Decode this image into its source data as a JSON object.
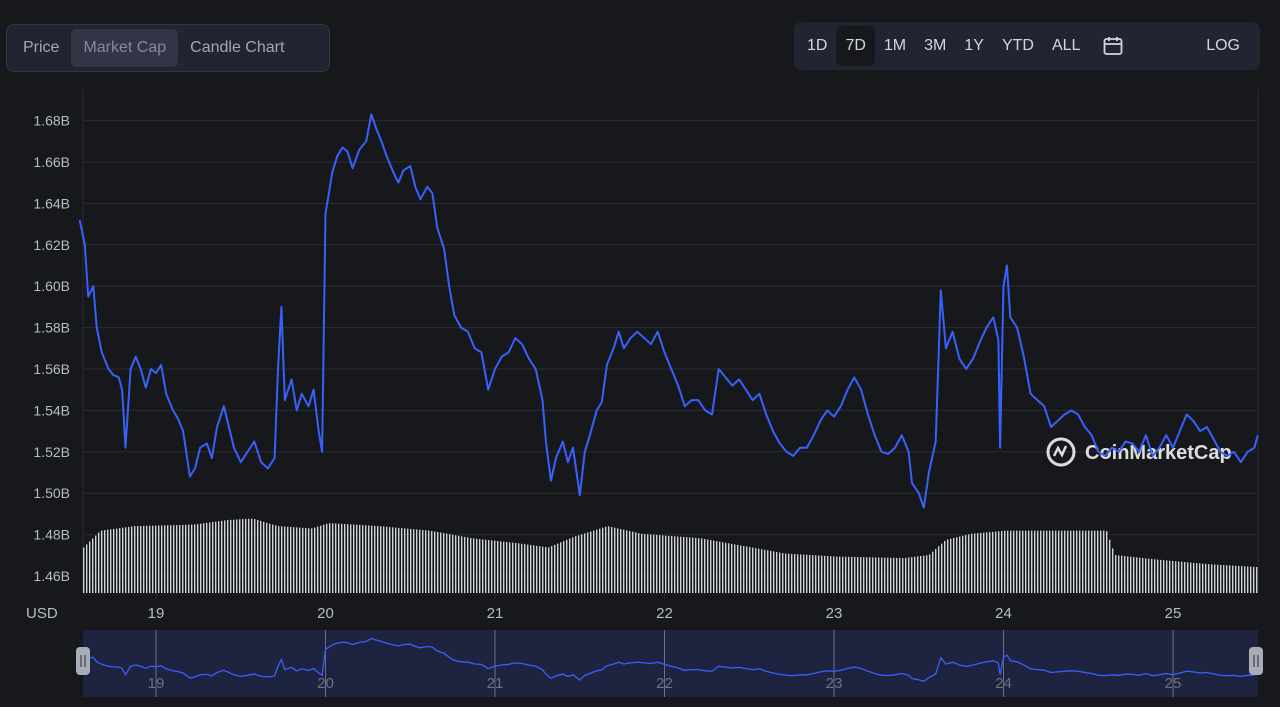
{
  "tabs": [
    {
      "label": "Price",
      "active": false
    },
    {
      "label": "Market Cap",
      "active": true
    },
    {
      "label": "Candle Chart",
      "active": false
    }
  ],
  "ranges": [
    {
      "label": "1D",
      "active": false
    },
    {
      "label": "7D",
      "active": true
    },
    {
      "label": "1M",
      "active": false
    },
    {
      "label": "3M",
      "active": false
    },
    {
      "label": "1Y",
      "active": false
    },
    {
      "label": "YTD",
      "active": false
    },
    {
      "label": "ALL",
      "active": false
    }
  ],
  "calendar_icon": "calendar-icon",
  "log_label": "LOG",
  "watermark": "CoinMarketCap",
  "colors": {
    "line": "#3861fb",
    "background": "#17181b",
    "grid": "#2a2c33",
    "volume": "#cfd2d8",
    "axis_text": "#b7bdc6",
    "navigator_bg": "#1e2340"
  },
  "chart_data": {
    "type": "line",
    "currency_label": "USD",
    "y_ticks": [
      "1.46B",
      "1.48B",
      "1.50B",
      "1.52B",
      "1.54B",
      "1.56B",
      "1.58B",
      "1.60B",
      "1.62B",
      "1.64B",
      "1.66B",
      "1.68B"
    ],
    "ylim": [
      1.45,
      1.69
    ],
    "x_ticks": [
      "19",
      "20",
      "21",
      "22",
      "23",
      "24",
      "25"
    ],
    "xlim": [
      18.55,
      25.5
    ],
    "grid": true,
    "series": [
      {
        "values": [
          [
            18.55,
            1.632
          ],
          [
            18.58,
            1.62
          ],
          [
            18.6,
            1.595
          ],
          [
            18.63,
            1.6
          ],
          [
            18.65,
            1.58
          ],
          [
            18.68,
            1.568
          ],
          [
            18.72,
            1.56
          ],
          [
            18.75,
            1.557
          ],
          [
            18.78,
            1.556
          ],
          [
            18.8,
            1.55
          ],
          [
            18.82,
            1.522
          ],
          [
            18.85,
            1.56
          ],
          [
            18.88,
            1.566
          ],
          [
            18.91,
            1.56
          ],
          [
            18.94,
            1.551
          ],
          [
            18.97,
            1.56
          ],
          [
            19.0,
            1.558
          ],
          [
            19.03,
            1.562
          ],
          [
            19.06,
            1.548
          ],
          [
            19.1,
            1.54
          ],
          [
            19.13,
            1.536
          ],
          [
            19.16,
            1.53
          ],
          [
            19.2,
            1.508
          ],
          [
            19.23,
            1.512
          ],
          [
            19.26,
            1.522
          ],
          [
            19.3,
            1.524
          ],
          [
            19.33,
            1.517
          ],
          [
            19.36,
            1.532
          ],
          [
            19.4,
            1.542
          ],
          [
            19.43,
            1.532
          ],
          [
            19.46,
            1.522
          ],
          [
            19.5,
            1.515
          ],
          [
            19.54,
            1.52
          ],
          [
            19.58,
            1.525
          ],
          [
            19.62,
            1.515
          ],
          [
            19.66,
            1.512
          ],
          [
            19.7,
            1.517
          ],
          [
            19.72,
            1.56
          ],
          [
            19.74,
            1.59
          ],
          [
            19.76,
            1.545
          ],
          [
            19.8,
            1.555
          ],
          [
            19.83,
            1.54
          ],
          [
            19.86,
            1.548
          ],
          [
            19.9,
            1.542
          ],
          [
            19.93,
            1.55
          ],
          [
            19.96,
            1.53
          ],
          [
            19.98,
            1.52
          ],
          [
            20.0,
            1.635
          ],
          [
            20.02,
            1.645
          ],
          [
            20.04,
            1.655
          ],
          [
            20.07,
            1.663
          ],
          [
            20.1,
            1.667
          ],
          [
            20.13,
            1.665
          ],
          [
            20.16,
            1.657
          ],
          [
            20.2,
            1.666
          ],
          [
            20.24,
            1.67
          ],
          [
            20.27,
            1.683
          ],
          [
            20.3,
            1.676
          ],
          [
            20.33,
            1.67
          ],
          [
            20.36,
            1.663
          ],
          [
            20.4,
            1.655
          ],
          [
            20.43,
            1.65
          ],
          [
            20.46,
            1.656
          ],
          [
            20.5,
            1.658
          ],
          [
            20.53,
            1.648
          ],
          [
            20.56,
            1.642
          ],
          [
            20.6,
            1.648
          ],
          [
            20.63,
            1.645
          ],
          [
            20.66,
            1.628
          ],
          [
            20.7,
            1.618
          ],
          [
            20.73,
            1.6
          ],
          [
            20.76,
            1.586
          ],
          [
            20.8,
            1.58
          ],
          [
            20.84,
            1.578
          ],
          [
            20.88,
            1.57
          ],
          [
            20.92,
            1.568
          ],
          [
            20.96,
            1.55
          ],
          [
            21.0,
            1.56
          ],
          [
            21.04,
            1.566
          ],
          [
            21.08,
            1.568
          ],
          [
            21.12,
            1.575
          ],
          [
            21.16,
            1.572
          ],
          [
            21.2,
            1.565
          ],
          [
            21.24,
            1.56
          ],
          [
            21.28,
            1.545
          ],
          [
            21.3,
            1.525
          ],
          [
            21.33,
            1.506
          ],
          [
            21.36,
            1.517
          ],
          [
            21.4,
            1.525
          ],
          [
            21.43,
            1.515
          ],
          [
            21.46,
            1.522
          ],
          [
            21.5,
            1.499
          ],
          [
            21.53,
            1.52
          ],
          [
            21.56,
            1.528
          ],
          [
            21.6,
            1.54
          ],
          [
            21.63,
            1.544
          ],
          [
            21.66,
            1.562
          ],
          [
            21.7,
            1.57
          ],
          [
            21.73,
            1.578
          ],
          [
            21.76,
            1.57
          ],
          [
            21.8,
            1.575
          ],
          [
            21.84,
            1.578
          ],
          [
            21.88,
            1.575
          ],
          [
            21.92,
            1.572
          ],
          [
            21.96,
            1.578
          ],
          [
            22.0,
            1.568
          ],
          [
            22.04,
            1.56
          ],
          [
            22.08,
            1.552
          ],
          [
            22.12,
            1.542
          ],
          [
            22.16,
            1.545
          ],
          [
            22.2,
            1.545
          ],
          [
            22.24,
            1.54
          ],
          [
            22.28,
            1.538
          ],
          [
            22.32,
            1.56
          ],
          [
            22.36,
            1.556
          ],
          [
            22.4,
            1.552
          ],
          [
            22.44,
            1.555
          ],
          [
            22.48,
            1.55
          ],
          [
            22.52,
            1.545
          ],
          [
            22.56,
            1.548
          ],
          [
            22.6,
            1.538
          ],
          [
            22.64,
            1.53
          ],
          [
            22.68,
            1.524
          ],
          [
            22.72,
            1.52
          ],
          [
            22.76,
            1.518
          ],
          [
            22.8,
            1.522
          ],
          [
            22.84,
            1.522
          ],
          [
            22.88,
            1.528
          ],
          [
            22.92,
            1.535
          ],
          [
            22.96,
            1.54
          ],
          [
            23.0,
            1.537
          ],
          [
            23.04,
            1.542
          ],
          [
            23.08,
            1.55
          ],
          [
            23.12,
            1.556
          ],
          [
            23.16,
            1.55
          ],
          [
            23.2,
            1.538
          ],
          [
            23.24,
            1.528
          ],
          [
            23.28,
            1.52
          ],
          [
            23.32,
            1.519
          ],
          [
            23.36,
            1.522
          ],
          [
            23.4,
            1.528
          ],
          [
            23.44,
            1.52
          ],
          [
            23.46,
            1.505
          ],
          [
            23.5,
            1.5
          ],
          [
            23.53,
            1.493
          ],
          [
            23.56,
            1.51
          ],
          [
            23.6,
            1.525
          ],
          [
            23.63,
            1.598
          ],
          [
            23.66,
            1.57
          ],
          [
            23.7,
            1.578
          ],
          [
            23.74,
            1.565
          ],
          [
            23.78,
            1.56
          ],
          [
            23.82,
            1.565
          ],
          [
            23.86,
            1.573
          ],
          [
            23.9,
            1.58
          ],
          [
            23.94,
            1.585
          ],
          [
            23.97,
            1.574
          ],
          [
            23.98,
            1.522
          ],
          [
            24.0,
            1.6
          ],
          [
            24.02,
            1.61
          ],
          [
            24.04,
            1.585
          ],
          [
            24.08,
            1.58
          ],
          [
            24.12,
            1.566
          ],
          [
            24.16,
            1.548
          ],
          [
            24.2,
            1.545
          ],
          [
            24.24,
            1.542
          ],
          [
            24.28,
            1.532
          ],
          [
            24.32,
            1.535
          ],
          [
            24.36,
            1.538
          ],
          [
            24.4,
            1.54
          ],
          [
            24.44,
            1.538
          ],
          [
            24.48,
            1.532
          ],
          [
            24.52,
            1.528
          ],
          [
            24.56,
            1.52
          ],
          [
            24.6,
            1.518
          ],
          [
            24.64,
            1.522
          ],
          [
            24.68,
            1.52
          ],
          [
            24.72,
            1.525
          ],
          [
            24.76,
            1.524
          ],
          [
            24.8,
            1.52
          ],
          [
            24.84,
            1.528
          ],
          [
            24.88,
            1.518
          ],
          [
            24.92,
            1.522
          ],
          [
            24.96,
            1.528
          ],
          [
            25.0,
            1.522
          ],
          [
            25.04,
            1.53
          ],
          [
            25.08,
            1.538
          ],
          [
            25.12,
            1.535
          ],
          [
            25.16,
            1.53
          ],
          [
            25.2,
            1.532
          ],
          [
            25.24,
            1.526
          ],
          [
            25.28,
            1.52
          ],
          [
            25.32,
            1.518
          ],
          [
            25.36,
            1.52
          ],
          [
            25.4,
            1.515
          ],
          [
            25.44,
            1.52
          ],
          [
            25.48,
            1.522
          ],
          [
            25.5,
            1.528
          ]
        ]
      }
    ],
    "volume_segments": [
      [
        18.55,
        0.6
      ],
      [
        18.65,
        0.82
      ],
      [
        18.85,
        0.88
      ],
      [
        19.2,
        0.9
      ],
      [
        19.4,
        0.96
      ],
      [
        19.55,
        0.98
      ],
      [
        19.7,
        0.88
      ],
      [
        19.9,
        0.85
      ],
      [
        20.0,
        0.92
      ],
      [
        20.3,
        0.88
      ],
      [
        20.6,
        0.82
      ],
      [
        20.85,
        0.72
      ],
      [
        21.1,
        0.66
      ],
      [
        21.3,
        0.6
      ],
      [
        21.45,
        0.74
      ],
      [
        21.65,
        0.88
      ],
      [
        21.85,
        0.78
      ],
      [
        22.2,
        0.72
      ],
      [
        22.5,
        0.6
      ],
      [
        22.7,
        0.52
      ],
      [
        23.0,
        0.48
      ],
      [
        23.4,
        0.46
      ],
      [
        23.55,
        0.5
      ],
      [
        23.65,
        0.7
      ],
      [
        23.8,
        0.78
      ],
      [
        24.0,
        0.82
      ],
      [
        24.3,
        0.82
      ],
      [
        24.6,
        0.82
      ],
      [
        24.65,
        0.5
      ],
      [
        24.9,
        0.44
      ],
      [
        25.2,
        0.38
      ],
      [
        25.5,
        0.34
      ]
    ]
  }
}
